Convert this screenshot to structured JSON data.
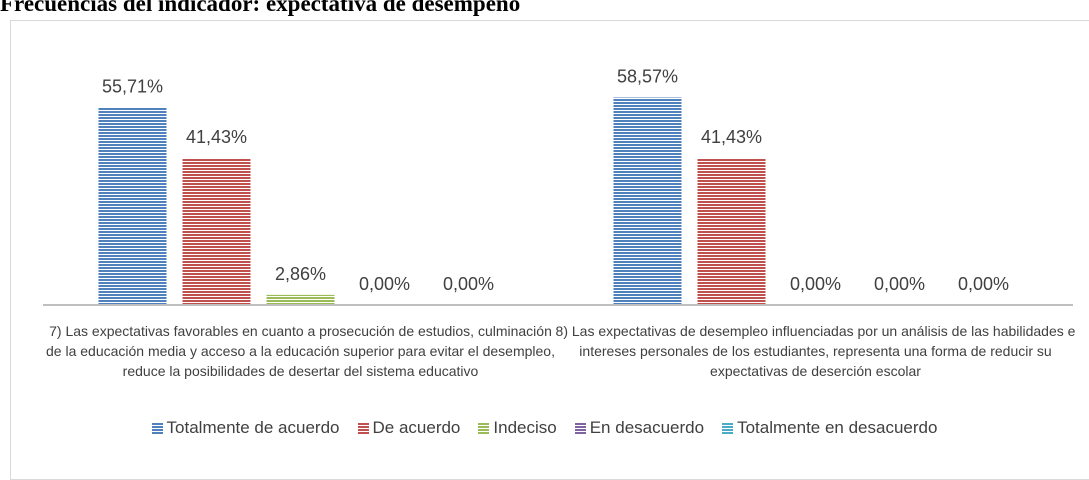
{
  "chart_data": {
    "type": "bar",
    "title": "Frecuencias del indicador: expectativa de desempeño",
    "categories": [
      "7) Las expectativas favorables en cuanto a prosecución de estudios, culminación de la educación media y acceso a la educación superior para evitar el desempleo, reduce la posibilidades de desertar del sistema educativo",
      "8) Las expectativas de desempleo influenciadas por un análisis de las habilidades e intereses personales de los estudiantes, representa una forma de reducir su expectativas de deserción escolar"
    ],
    "series": [
      {
        "name": "Totalmente de acuerdo",
        "color": "#4f81bd",
        "values": [
          55.71,
          58.57
        ],
        "value_labels": [
          "55,71%",
          "58,57%"
        ]
      },
      {
        "name": "De acuerdo",
        "color": "#c0504d",
        "values": [
          41.43,
          41.43
        ],
        "value_labels": [
          "41,43%",
          "41,43%"
        ]
      },
      {
        "name": "Indeciso",
        "color": "#9bbb59",
        "values": [
          2.86,
          0
        ],
        "value_labels": [
          "2,86%",
          "0,00%"
        ]
      },
      {
        "name": "En desacuerdo",
        "color": "#8064a2",
        "values": [
          0,
          0
        ],
        "value_labels": [
          "0,00%",
          "0,00%"
        ]
      },
      {
        "name": "Totalmente en desacuerdo",
        "color": "#4bacc6",
        "values": [
          0,
          0
        ],
        "value_labels": [
          "0,00%",
          "0,00%"
        ]
      }
    ],
    "ylim": [
      0,
      70
    ],
    "legend": "bottom"
  }
}
